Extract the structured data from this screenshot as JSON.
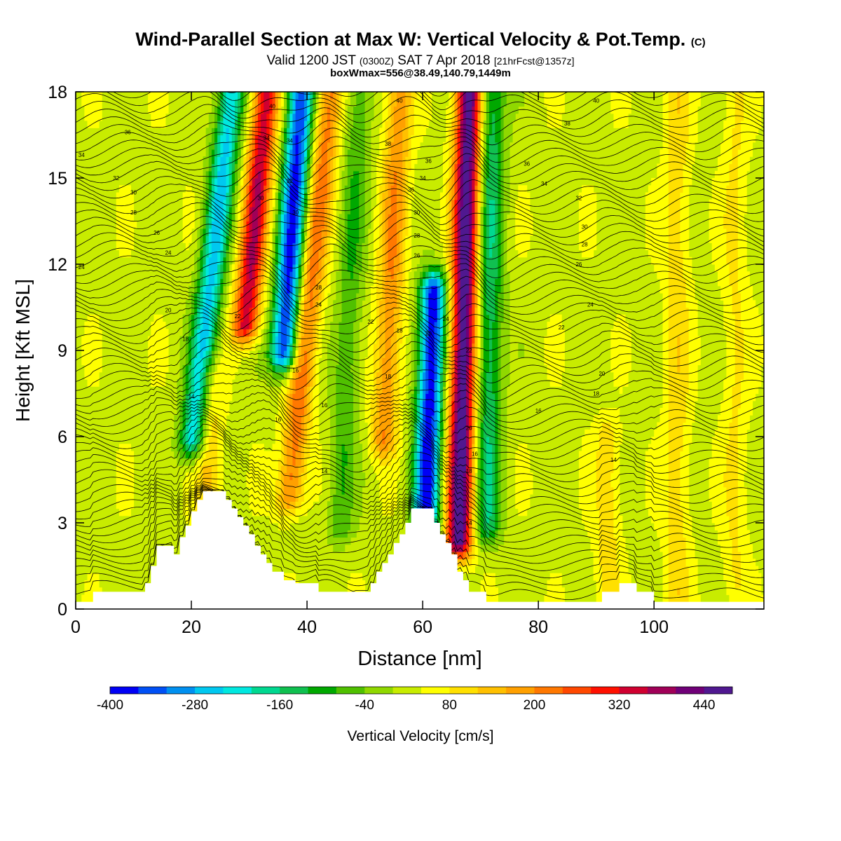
{
  "header": {
    "title": "Wind-Parallel Section at Max W: Vertical Velocity & Pot.Temp.",
    "title_mark": "(C)",
    "valid_prefix": "Valid 1200 JST",
    "valid_utc": "(0300Z)",
    "valid_date": "SAT 7 Apr 2018",
    "forecast_info": "[21hrFcst@1357z]",
    "box_info": "boxWmax=556@38.49,140.79,1449m"
  },
  "chart_data": {
    "type": "heatmap",
    "xlabel": "Distance [nm]",
    "ylabel": "Height [Kft MSL]",
    "xlim": [
      0,
      119
    ],
    "ylim": [
      0,
      18
    ],
    "x_ticks": [
      0,
      20,
      40,
      60,
      80,
      100
    ],
    "y_ticks": [
      0,
      3,
      6,
      9,
      12,
      15,
      18
    ],
    "colorbar": {
      "label": "Vertical Velocity [cm/s]",
      "range": [
        -400,
        480
      ],
      "step": 40,
      "tick_values": [
        -400,
        -280,
        -160,
        -40,
        80,
        200,
        320,
        440
      ],
      "tick_labels": [
        "-400",
        "-280",
        "-160",
        "-40",
        "80",
        "200",
        "320",
        "440"
      ],
      "colors": [
        "#0000f5",
        "#0050f5",
        "#0090f0",
        "#00c8f0",
        "#00e8e0",
        "#00d890",
        "#10c050",
        "#00a800",
        "#50c000",
        "#90d800",
        "#c8ec00",
        "#ffff00",
        "#ffe000",
        "#ffc000",
        "#ffa000",
        "#ff7800",
        "#ff4800",
        "#ff1000",
        "#d00030",
        "#a00058",
        "#700078",
        "#501890"
      ]
    },
    "background_color": "#c8ec00",
    "updraft_bands": [
      {
        "x": 33,
        "z_top": 18,
        "z_bottom": 10,
        "peak": 330,
        "lean": 8
      },
      {
        "x": 44,
        "z_top": 18,
        "z_bottom": 4,
        "peak": 200,
        "lean": 9
      },
      {
        "x": 56,
        "z_top": 18,
        "z_bottom": 6,
        "peak": 170,
        "lean": 4
      },
      {
        "x": 68,
        "z_top": 18,
        "z_bottom": 2.5,
        "peak": 450,
        "lean": 2
      },
      {
        "x": 23,
        "z_top": 8,
        "z_bottom": 3.5,
        "peak": 110,
        "lean": 0
      },
      {
        "x": 92,
        "z_top": 6,
        "z_bottom": 0.5,
        "peak": 80,
        "lean": 0
      },
      {
        "x": 104,
        "z_top": 18,
        "z_bottom": 0.5,
        "peak": 80,
        "lean": 0
      },
      {
        "x": 114,
        "z_top": 18,
        "z_bottom": 1,
        "peak": 60,
        "lean": 0
      }
    ],
    "downdraft_bands": [
      {
        "x": 27,
        "z_top": 18,
        "z_bottom": 6,
        "peak": -280,
        "lean": 10
      },
      {
        "x": 39,
        "z_top": 18,
        "z_bottom": 9,
        "peak": -400,
        "lean": 6
      },
      {
        "x": 49,
        "z_top": 18,
        "z_bottom": 3,
        "peak": -100,
        "lean": 4
      },
      {
        "x": 63,
        "z_top": 11,
        "z_bottom": 3,
        "peak": -420,
        "lean": 3
      },
      {
        "x": 72,
        "z_top": 18,
        "z_bottom": 3,
        "peak": -180,
        "lean": 1
      }
    ],
    "terrain_profile": [
      {
        "x": 0,
        "z": 0.25
      },
      {
        "x": 3,
        "z": 0.25
      },
      {
        "x": 3,
        "z": 0.6
      },
      {
        "x": 12,
        "z": 0.6
      },
      {
        "x": 12,
        "z": 0.9
      },
      {
        "x": 13,
        "z": 0.9
      },
      {
        "x": 13,
        "z": 1.5
      },
      {
        "x": 14,
        "z": 1.5
      },
      {
        "x": 14,
        "z": 2.2
      },
      {
        "x": 17,
        "z": 2.2
      },
      {
        "x": 17,
        "z": 1.9
      },
      {
        "x": 18,
        "z": 1.9
      },
      {
        "x": 18,
        "z": 2.5
      },
      {
        "x": 19,
        "z": 2.5
      },
      {
        "x": 19,
        "z": 2.9
      },
      {
        "x": 20,
        "z": 2.9
      },
      {
        "x": 20,
        "z": 3.4
      },
      {
        "x": 21,
        "z": 3.4
      },
      {
        "x": 21,
        "z": 3.8
      },
      {
        "x": 22,
        "z": 3.8
      },
      {
        "x": 22,
        "z": 4.1
      },
      {
        "x": 26,
        "z": 4.1
      },
      {
        "x": 26,
        "z": 3.8
      },
      {
        "x": 27,
        "z": 3.8
      },
      {
        "x": 27,
        "z": 3.5
      },
      {
        "x": 28,
        "z": 3.5
      },
      {
        "x": 28,
        "z": 3.2
      },
      {
        "x": 29,
        "z": 3.2
      },
      {
        "x": 29,
        "z": 2.9
      },
      {
        "x": 30,
        "z": 2.9
      },
      {
        "x": 30,
        "z": 2.6
      },
      {
        "x": 31,
        "z": 2.6
      },
      {
        "x": 31,
        "z": 2.2
      },
      {
        "x": 32,
        "z": 2.2
      },
      {
        "x": 32,
        "z": 1.9
      },
      {
        "x": 33,
        "z": 1.9
      },
      {
        "x": 33,
        "z": 1.6
      },
      {
        "x": 34,
        "z": 1.6
      },
      {
        "x": 34,
        "z": 1.3
      },
      {
        "x": 36,
        "z": 1.3
      },
      {
        "x": 36,
        "z": 1.0
      },
      {
        "x": 38,
        "z": 1.0
      },
      {
        "x": 38,
        "z": 0.9
      },
      {
        "x": 42,
        "z": 0.9
      },
      {
        "x": 42,
        "z": 0.6
      },
      {
        "x": 51,
        "z": 0.6
      },
      {
        "x": 51,
        "z": 0.9
      },
      {
        "x": 52,
        "z": 0.9
      },
      {
        "x": 52,
        "z": 1.3
      },
      {
        "x": 53,
        "z": 1.3
      },
      {
        "x": 53,
        "z": 1.6
      },
      {
        "x": 54,
        "z": 1.6
      },
      {
        "x": 54,
        "z": 1.9
      },
      {
        "x": 55,
        "z": 1.9
      },
      {
        "x": 55,
        "z": 2.3
      },
      {
        "x": 56,
        "z": 2.3
      },
      {
        "x": 56,
        "z": 2.6
      },
      {
        "x": 57,
        "z": 2.6
      },
      {
        "x": 57,
        "z": 3.0
      },
      {
        "x": 58,
        "z": 3.0
      },
      {
        "x": 58,
        "z": 3.5
      },
      {
        "x": 62,
        "z": 3.5
      },
      {
        "x": 62,
        "z": 3.0
      },
      {
        "x": 63,
        "z": 3.0
      },
      {
        "x": 63,
        "z": 2.6
      },
      {
        "x": 64,
        "z": 2.6
      },
      {
        "x": 64,
        "z": 2.3
      },
      {
        "x": 65,
        "z": 2.3
      },
      {
        "x": 65,
        "z": 1.9
      },
      {
        "x": 66,
        "z": 1.9
      },
      {
        "x": 66,
        "z": 1.3
      },
      {
        "x": 67,
        "z": 1.3
      },
      {
        "x": 67,
        "z": 1.0
      },
      {
        "x": 68,
        "z": 1.0
      },
      {
        "x": 68,
        "z": 0.6
      },
      {
        "x": 71,
        "z": 0.6
      },
      {
        "x": 71,
        "z": 0.25
      },
      {
        "x": 91,
        "z": 0.25
      },
      {
        "x": 91,
        "z": 0.6
      },
      {
        "x": 94,
        "z": 0.6
      },
      {
        "x": 94,
        "z": 0.9
      },
      {
        "x": 97,
        "z": 0.9
      },
      {
        "x": 97,
        "z": 0.6
      },
      {
        "x": 100,
        "z": 0.6
      },
      {
        "x": 100,
        "z": 0.25
      },
      {
        "x": 119,
        "z": 0.25
      }
    ],
    "contour_labels": [
      {
        "text": "40",
        "x": 34,
        "z": 17.5
      },
      {
        "text": "40",
        "x": 56,
        "z": 17.7
      },
      {
        "text": "40",
        "x": 90,
        "z": 17.7
      },
      {
        "text": "38",
        "x": 85,
        "z": 16.9
      },
      {
        "text": "36",
        "x": 9,
        "z": 16.6
      },
      {
        "text": "34",
        "x": 33,
        "z": 16.4
      },
      {
        "text": "34",
        "x": 37,
        "z": 16.3
      },
      {
        "text": "38",
        "x": 54,
        "z": 16.2
      },
      {
        "text": "34",
        "x": 1,
        "z": 15.8
      },
      {
        "text": "36",
        "x": 61,
        "z": 15.6
      },
      {
        "text": "36",
        "x": 78,
        "z": 15.5
      },
      {
        "text": "32",
        "x": 7,
        "z": 15.0
      },
      {
        "text": "34",
        "x": 60,
        "z": 15.0
      },
      {
        "text": "34",
        "x": 81,
        "z": 14.8
      },
      {
        "text": "32",
        "x": 37,
        "z": 14.9
      },
      {
        "text": "36",
        "x": 58,
        "z": 14.6
      },
      {
        "text": "30",
        "x": 10,
        "z": 14.5
      },
      {
        "text": "32",
        "x": 87,
        "z": 14.3
      },
      {
        "text": "30",
        "x": 32,
        "z": 14.3
      },
      {
        "text": "28",
        "x": 10,
        "z": 13.8
      },
      {
        "text": "30",
        "x": 38,
        "z": 13.8
      },
      {
        "text": "30",
        "x": 59,
        "z": 13.8
      },
      {
        "text": "30",
        "x": 88,
        "z": 13.3
      },
      {
        "text": "26",
        "x": 14,
        "z": 13.1
      },
      {
        "text": "28",
        "x": 59,
        "z": 13.0
      },
      {
        "text": "28",
        "x": 88,
        "z": 12.7
      },
      {
        "text": "26",
        "x": 59,
        "z": 12.3
      },
      {
        "text": "24",
        "x": 16,
        "z": 12.4
      },
      {
        "text": "26",
        "x": 87,
        "z": 12.0
      },
      {
        "text": "24",
        "x": 1,
        "z": 11.9
      },
      {
        "text": "28",
        "x": 42,
        "z": 11.2
      },
      {
        "text": "24",
        "x": 42,
        "z": 10.6
      },
      {
        "text": "24",
        "x": 89,
        "z": 10.6
      },
      {
        "text": "20",
        "x": 16,
        "z": 10.4
      },
      {
        "text": "22",
        "x": 28,
        "z": 10.2
      },
      {
        "text": "24",
        "x": 64,
        "z": 10.1
      },
      {
        "text": "22",
        "x": 51,
        "z": 10.0
      },
      {
        "text": "22",
        "x": 84,
        "z": 9.8
      },
      {
        "text": "18",
        "x": 56,
        "z": 9.7
      },
      {
        "text": "20",
        "x": 61,
        "z": 9.6
      },
      {
        "text": "18",
        "x": 19,
        "z": 9.4
      },
      {
        "text": "22",
        "x": 68,
        "z": 9.0
      },
      {
        "text": "16",
        "x": 38,
        "z": 8.3
      },
      {
        "text": "20",
        "x": 91,
        "z": 8.2
      },
      {
        "text": "18",
        "x": 54,
        "z": 8.1
      },
      {
        "text": "18",
        "x": 90,
        "z": 7.5
      },
      {
        "text": "14",
        "x": 20,
        "z": 7.4
      },
      {
        "text": "16",
        "x": 43,
        "z": 7.1
      },
      {
        "text": "16",
        "x": 80,
        "z": 6.9
      },
      {
        "text": "16",
        "x": 35,
        "z": 6.6
      },
      {
        "text": "20",
        "x": 68,
        "z": 6.3
      },
      {
        "text": "16",
        "x": 69,
        "z": 5.4
      },
      {
        "text": "14",
        "x": 93,
        "z": 5.2
      },
      {
        "text": "14",
        "x": 43,
        "z": 4.8
      },
      {
        "text": "18",
        "x": 68,
        "z": 4.8
      },
      {
        "text": "14",
        "x": 68,
        "z": 3.0
      }
    ]
  }
}
